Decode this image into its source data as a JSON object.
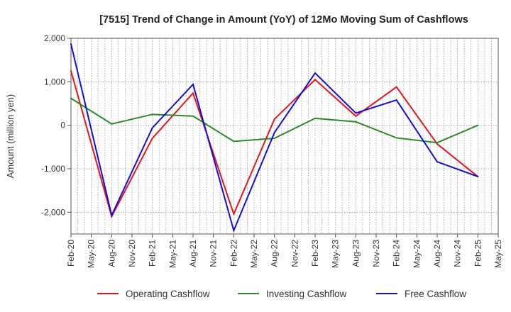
{
  "chart_data": {
    "type": "line",
    "title": "[7515]  Trend of Change in Amount (YoY) of 12Mo Moving Sum of Cashflows",
    "xlabel": "",
    "ylabel": "Amount (million yen)",
    "ylim": [
      -2500,
      2000
    ],
    "yticks": [
      2000,
      1000,
      0,
      -1000,
      -2000
    ],
    "ytick_labels": [
      "2,000",
      "1,000",
      "0",
      "-1,000",
      "-2,000"
    ],
    "categories": [
      "Feb-20",
      "Mar-20",
      "Apr-20",
      "May-20",
      "Jun-20",
      "Jul-20",
      "Aug-20",
      "Sep-20",
      "Oct-20",
      "Nov-20",
      "Dec-20",
      "Jan-21",
      "Feb-21",
      "Mar-21",
      "Apr-21",
      "May-21",
      "Jun-21",
      "Jul-21",
      "Aug-21",
      "Sep-21",
      "Oct-21",
      "Nov-21",
      "Dec-21",
      "Jan-22",
      "Feb-22",
      "Mar-22",
      "Apr-22",
      "May-22",
      "Jun-22",
      "Jul-22",
      "Aug-22",
      "Sep-22",
      "Oct-22",
      "Nov-22",
      "Dec-22",
      "Jan-23",
      "Feb-23",
      "Mar-23",
      "Apr-23",
      "May-23",
      "Jun-23",
      "Jul-23",
      "Aug-23",
      "Sep-23",
      "Oct-23",
      "Nov-23",
      "Dec-23",
      "Jan-24",
      "Feb-24",
      "Mar-24",
      "Apr-24",
      "May-24",
      "Jun-24",
      "Jul-24",
      "Aug-24",
      "Sep-24",
      "Oct-24",
      "Nov-24",
      "Dec-24",
      "Jan-25",
      "Feb-25",
      "Mar-25",
      "Apr-25",
      "May-25"
    ],
    "xtick_labels": [
      "Feb-20",
      "May-20",
      "Aug-20",
      "Nov-20",
      "Feb-21",
      "May-21",
      "Aug-21",
      "Nov-21",
      "Feb-22",
      "May-22",
      "Aug-22",
      "Nov-22",
      "Feb-23",
      "May-23",
      "Aug-23",
      "Nov-23",
      "Feb-24",
      "May-24",
      "Aug-24",
      "Nov-24",
      "Feb-25",
      "May-25"
    ],
    "grid": true,
    "legend_position": "bottom",
    "series": [
      {
        "name": "Operating Cashflow",
        "color": "#e8141b",
        "x": [
          "Feb-20",
          "Aug-20",
          "Feb-21",
          "Aug-21",
          "Feb-22",
          "Aug-22",
          "Feb-23",
          "Aug-23",
          "Feb-24",
          "Aug-24",
          "Feb-25"
        ],
        "values": [
          1250,
          -2100,
          -300,
          740,
          -2040,
          140,
          1050,
          210,
          880,
          -430,
          -1180
        ]
      },
      {
        "name": "Investing Cashflow",
        "color": "#2a8a2a",
        "x": [
          "Feb-20",
          "Aug-20",
          "Feb-21",
          "Aug-21",
          "Feb-22",
          "Aug-22",
          "Feb-23",
          "Aug-23",
          "Feb-24",
          "Aug-24",
          "Feb-25"
        ],
        "values": [
          620,
          30,
          250,
          210,
          -370,
          -300,
          160,
          80,
          -290,
          -400,
          0
        ]
      },
      {
        "name": "Free Cashflow",
        "color": "#1010d8",
        "x": [
          "Feb-20",
          "Aug-20",
          "Feb-21",
          "Aug-21",
          "Feb-22",
          "Aug-22",
          "Feb-23",
          "Aug-23",
          "Feb-24",
          "Aug-24",
          "Feb-25"
        ],
        "values": [
          1870,
          -2070,
          -60,
          940,
          -2420,
          -170,
          1200,
          280,
          580,
          -840,
          -1180
        ]
      }
    ]
  }
}
